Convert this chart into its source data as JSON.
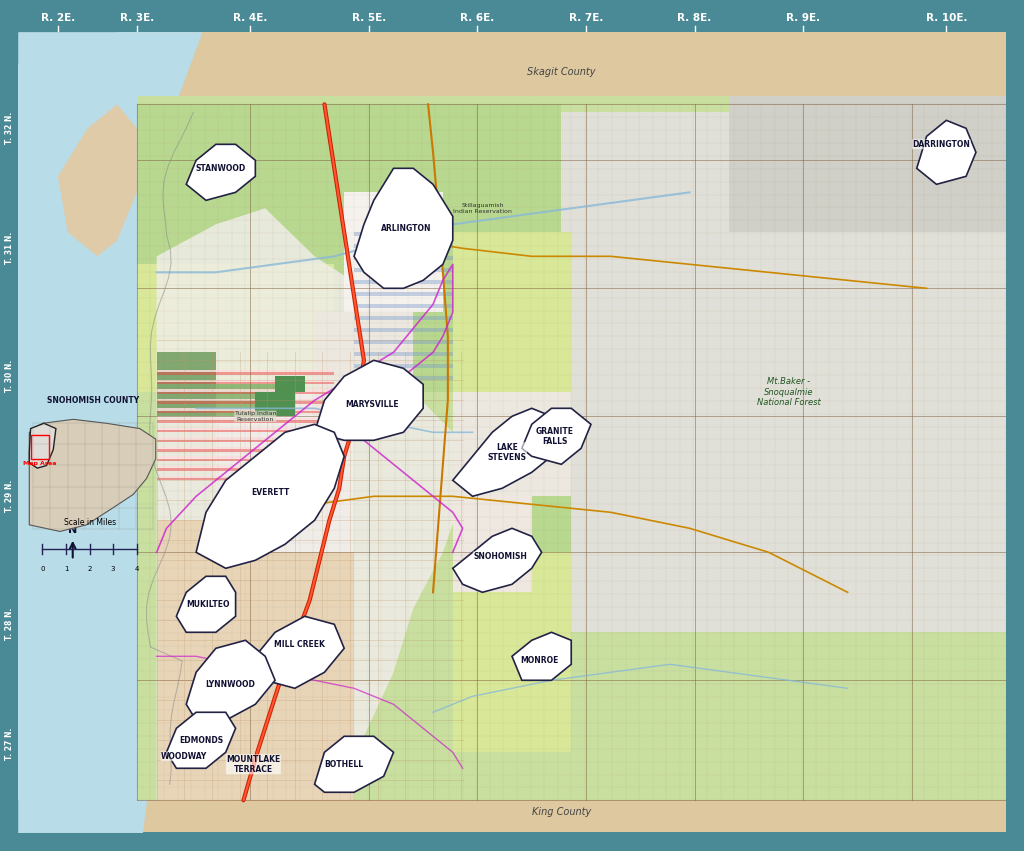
{
  "fig_width": 10.24,
  "fig_height": 8.51,
  "dpi": 100,
  "teal_border": "#4a8a96",
  "water_light": "#c5e8f0",
  "puget_sound": "#b8dce8",
  "land_beige": "#e0cba8",
  "light_green1": "#c8dfa0",
  "light_green2": "#b8d890",
  "yellow_green": "#d8e898",
  "pale_yellow": "#e8f0b0",
  "gray_white": "#e0e0d8",
  "gray_light": "#d0d0c8",
  "urban_white": "#f0ede8",
  "tan_light": "#e0c898",
  "green_dark": "#88b870",
  "green_medium": "#98c878",
  "skagit_beige": "#ddc8a0",
  "king_beige": "#ddc8a0",
  "grid_major": "#8b7355",
  "grid_minor": "#c4a882",
  "road_red": "#cc2200",
  "road_orange": "#e88820",
  "road_yellow": "#d8c000",
  "river_blue": "#88b8d8",
  "purple_uga": "#9933bb",
  "header_labels": [
    "R. 2E.",
    "R. 3E.",
    "R. 4E.",
    "R. 5E.",
    "R. 6E.",
    "R. 7E.",
    "R. 8E.",
    "R. 9E.",
    "R. 10E."
  ],
  "left_labels": [
    "T. 32 N.",
    "T. 31 N.",
    "T. 30 N.",
    "T. 29 N.",
    "T. 28 N.",
    "T. 27 N."
  ],
  "skagit_label": "Skagit County",
  "king_label": "King County",
  "mcbaker_label": "Mt.Baker -\nSnoqualmie\nNational Forest",
  "snohomish_label": "SNOHOMISH COUNTY",
  "map_area_label": "Map Area",
  "scale_label": "Scale in Miles"
}
